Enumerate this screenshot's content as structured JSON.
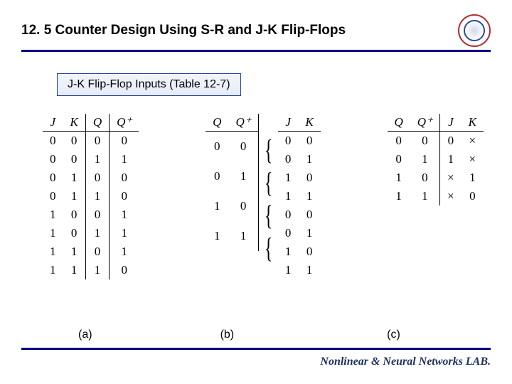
{
  "title": "12. 5 Counter Design Using S-R and J-K Flip-Flops",
  "subtitle": "J-K Flip-Flop Inputs (Table 12-7)",
  "labels": {
    "a": "(a)",
    "b": "(b)",
    "c": "(c)"
  },
  "footer": "Nonlinear & Neural Networks LAB.",
  "colors": {
    "rule": "#000080",
    "subtitle_border": "#2040a0",
    "subtitle_bg_top": "#f0f4fc",
    "subtitle_bg_bottom": "#e8ecf8",
    "footer_text": "#203060"
  },
  "tableA": {
    "headers": [
      "J",
      "K",
      "Q",
      "Q⁺"
    ],
    "rows": [
      [
        "0",
        "0",
        "0",
        "0"
      ],
      [
        "0",
        "0",
        "1",
        "1"
      ],
      [
        "0",
        "1",
        "0",
        "0"
      ],
      [
        "0",
        "1",
        "1",
        "0"
      ],
      [
        "1",
        "0",
        "0",
        "1"
      ],
      [
        "1",
        "0",
        "1",
        "1"
      ],
      [
        "1",
        "1",
        "0",
        "1"
      ],
      [
        "1",
        "1",
        "1",
        "0"
      ]
    ]
  },
  "tableB": {
    "left_headers": [
      "Q",
      "Q⁺"
    ],
    "right_headers": [
      "J",
      "K"
    ],
    "left_rows": [
      [
        "0",
        "0"
      ],
      [
        "0",
        "1"
      ],
      [
        "1",
        "0"
      ],
      [
        "1",
        "1"
      ]
    ],
    "right_rows": [
      [
        "0",
        "0"
      ],
      [
        "0",
        "1"
      ],
      [
        "1",
        "0"
      ],
      [
        "1",
        "1"
      ],
      [
        "0",
        "0"
      ],
      [
        "0",
        "1"
      ],
      [
        "1",
        "0"
      ],
      [
        "1",
        "1"
      ]
    ]
  },
  "tableC": {
    "headers": [
      "Q",
      "Q⁺",
      "J",
      "K"
    ],
    "rows": [
      [
        "0",
        "0",
        "0",
        "×"
      ],
      [
        "0",
        "1",
        "1",
        "×"
      ],
      [
        "1",
        "0",
        "×",
        "1"
      ],
      [
        "1",
        "1",
        "×",
        "0"
      ]
    ]
  }
}
